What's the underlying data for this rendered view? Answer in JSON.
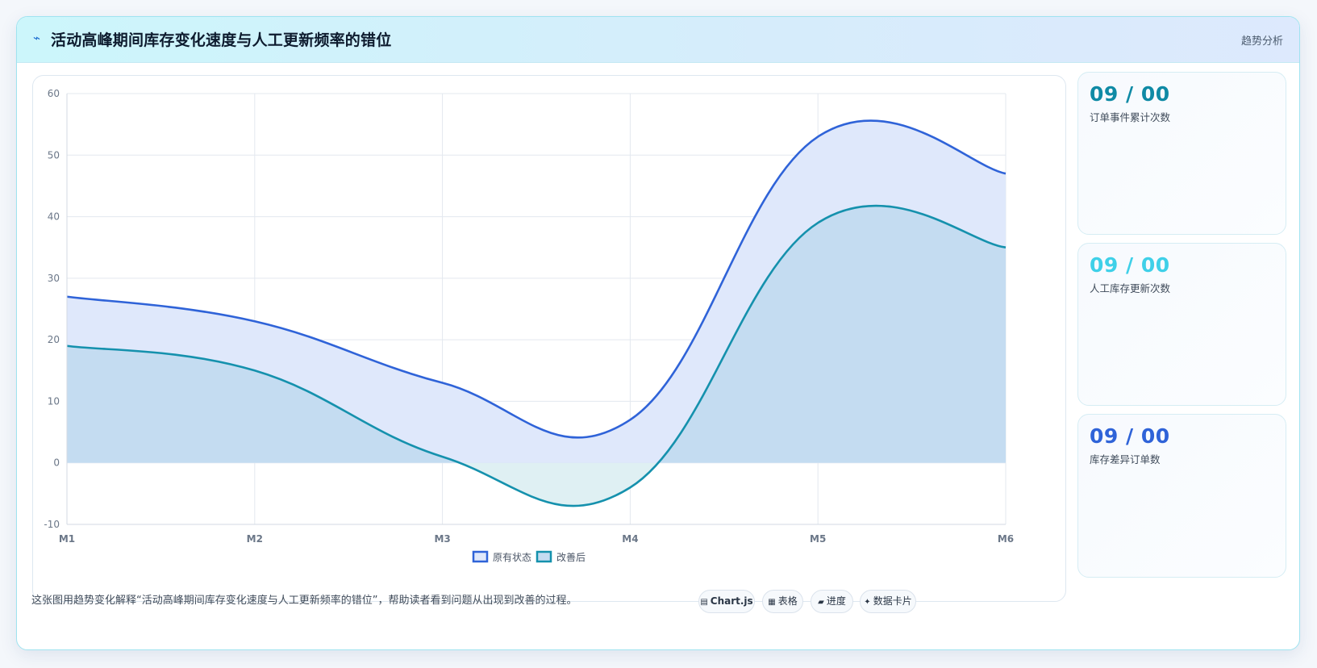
{
  "header": {
    "title": "活动高峰期间库存变化速度与人工更新频率的错位",
    "tag": "趋势分析"
  },
  "chart_data": {
    "type": "area",
    "categories": [
      "M1",
      "M2",
      "M3",
      "M4",
      "M5",
      "M6"
    ],
    "series": [
      {
        "name": "原有状态",
        "values": [
          27,
          23,
          13,
          7,
          53,
          47
        ],
        "color": "#2f63d8",
        "fill": "#dfe8fb"
      },
      {
        "name": "改善后",
        "values": [
          19,
          15,
          1,
          -4,
          39,
          35
        ],
        "color": "#1591ad",
        "fill": "#c4dcf1",
        "fill_negative": "#dff0f3"
      }
    ],
    "ylim": [
      -10,
      60
    ],
    "yticks": [
      -10,
      0,
      10,
      20,
      30,
      40,
      50,
      60
    ],
    "grid": true,
    "legend": "bottom"
  },
  "stats": [
    {
      "value": "09 / 00",
      "label": "订单事件累计次数",
      "color": "#0f8aa5"
    },
    {
      "value": "09 / 00",
      "label": "人工库存更新次数",
      "color": "#3fd0e8"
    },
    {
      "value": "09 / 00",
      "label": "库存差异订单数",
      "color": "#2f63d8"
    }
  ],
  "footer": {
    "description": "这张图用趋势变化解释“活动高峰期间库存变化速度与人工更新频率的错位”，帮助读者看到问题从出现到改善的过程。",
    "chips": [
      {
        "icon": "▤",
        "label": "Chart.js",
        "bold": true
      },
      {
        "icon": "▦",
        "label": "表格"
      },
      {
        "icon": "▰",
        "label": "进度"
      },
      {
        "icon": "✦",
        "label": "数据卡片"
      }
    ]
  }
}
